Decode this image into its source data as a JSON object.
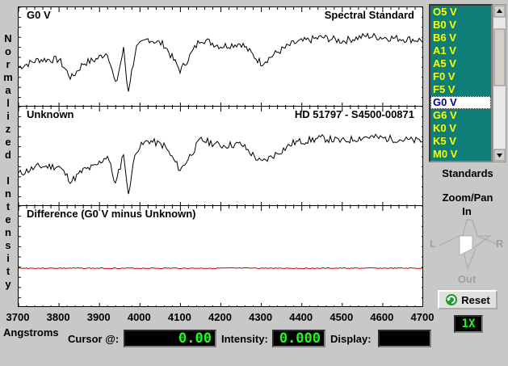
{
  "y_axis_label": [
    "N",
    "o",
    "r",
    "m",
    "a",
    "l",
    "i",
    "z",
    "e",
    "d",
    "",
    "I",
    "n",
    "t",
    "e",
    "n",
    "s",
    "i",
    "t",
    "y"
  ],
  "panels": {
    "standard": {
      "title_left": "G0 V",
      "title_right": "Spectral Standard"
    },
    "unknown": {
      "title_left": "Unknown",
      "title_right": "HD 51797 - S4500-00871"
    },
    "difference": {
      "title_left": "Difference (G0 V minus Unknown)"
    }
  },
  "x_axis": {
    "label": "Angstroms",
    "ticks": [
      "3700",
      "3800",
      "3900",
      "4000",
      "4100",
      "4200",
      "4300",
      "4400",
      "4500",
      "4600",
      "4700"
    ]
  },
  "readouts": {
    "cursor_label": "Cursor @:",
    "cursor_value": "0.00",
    "intensity_label": "Intensity:",
    "intensity_value": "0.000",
    "display_label": "Display:",
    "display_value": ""
  },
  "standards_list": {
    "items": [
      "O5 V",
      "B0 V",
      "B6 V",
      "A1 V",
      "A5 V",
      "F0 V",
      "F5 V",
      "G0 V",
      "G6 V",
      "K0 V",
      "K5 V",
      "M0 V"
    ],
    "selected": "G0 V",
    "caption": "Standards"
  },
  "zoom_pan": {
    "title": "Zoom/Pan",
    "in": "In",
    "out": "Out",
    "left": "L",
    "right": "R",
    "reset_label": "Reset",
    "zoom_level": "1X"
  },
  "colors": {
    "list_bg": "#0f7d78",
    "list_text": "#ffff00",
    "lcd_text": "#1aff1a",
    "difference_line": "#cc0000"
  },
  "chart_data": {
    "type": "line",
    "x_range": [
      3700,
      4700
    ],
    "series": [
      {
        "name": "G0 V",
        "x": [
          3700,
          3750,
          3800,
          3830,
          3860,
          3890,
          3920,
          3940,
          3960,
          3970,
          3990,
          4020,
          4060,
          4100,
          4150,
          4200,
          4250,
          4300,
          4340,
          4380,
          4450,
          4500,
          4560,
          4600,
          4650,
          4700
        ],
        "y": [
          0.5,
          0.6,
          0.6,
          0.35,
          0.55,
          0.6,
          0.7,
          0.25,
          0.75,
          0.15,
          0.75,
          0.88,
          0.8,
          0.45,
          0.88,
          0.78,
          0.82,
          0.55,
          0.7,
          0.82,
          0.9,
          0.85,
          0.92,
          0.9,
          0.88,
          0.86
        ]
      },
      {
        "name": "Unknown",
        "x": [
          3700,
          3750,
          3800,
          3830,
          3860,
          3890,
          3920,
          3940,
          3960,
          3970,
          3990,
          4020,
          4060,
          4100,
          4150,
          4200,
          4250,
          4300,
          4340,
          4380,
          4450,
          4500,
          4560,
          4600,
          4650,
          4700
        ],
        "y": [
          0.4,
          0.5,
          0.5,
          0.3,
          0.45,
          0.5,
          0.65,
          0.25,
          0.7,
          0.1,
          0.72,
          0.85,
          0.78,
          0.45,
          0.86,
          0.78,
          0.8,
          0.55,
          0.68,
          0.82,
          0.88,
          0.84,
          0.9,
          0.88,
          0.86,
          0.84
        ]
      },
      {
        "name": "Difference",
        "x": [
          3700,
          4700
        ],
        "y": [
          0.0,
          0.0
        ]
      }
    ]
  }
}
